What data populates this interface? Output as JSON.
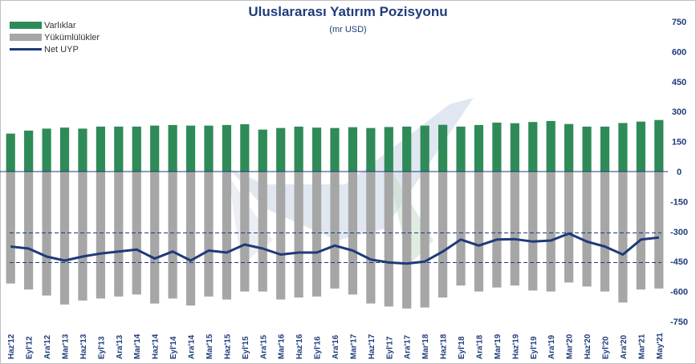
{
  "chart_data": {
    "type": "bar",
    "title": "Uluslararası  Yatırım Pozisyonu",
    "subtitle": "(mr USD)",
    "categories": [
      "Haz'12",
      "Eyl'12",
      "Ara'12",
      "Mar'13",
      "Haz'13",
      "Eyl'13",
      "Ara'13",
      "Mar'14",
      "Haz'14",
      "Eyl'14",
      "Ara'14",
      "Mar'15",
      "Haz'15",
      "Eyl'15",
      "Ara'15",
      "Mar'16",
      "Haz'16",
      "Eyl'16",
      "Ara'16",
      "Mar'17",
      "Haz'17",
      "Eyl'17",
      "Ara'17",
      "Mar'18",
      "Haz'18",
      "Eyl'18",
      "Ara'18",
      "Mar'19",
      "Haz'19",
      "Eyl'19",
      "Ara'19",
      "Mar'20",
      "Haz'20",
      "Eyl'20",
      "Ara'20",
      "Mar'21",
      "May'21"
    ],
    "series": [
      {
        "name": "Varlıklar",
        "kind": "bar",
        "color": "#2e8b57",
        "values": [
          190,
          205,
          215,
          220,
          215,
          225,
          225,
          225,
          230,
          233,
          230,
          230,
          233,
          237,
          210,
          218,
          225,
          220,
          218,
          222,
          218,
          223,
          225,
          230,
          234,
          225,
          233,
          245,
          242,
          248,
          253,
          238,
          225,
          225,
          243,
          250,
          258
        ]
      },
      {
        "name": "Yükümlülükler",
        "kind": "bar",
        "color": "#a6a6a6",
        "values": [
          -560,
          -590,
          -620,
          -665,
          -645,
          -635,
          -625,
          -615,
          -660,
          -635,
          -670,
          -625,
          -640,
          -600,
          -600,
          -640,
          -630,
          -625,
          -585,
          -615,
          -660,
          -675,
          -685,
          -680,
          -630,
          -570,
          -600,
          -580,
          -570,
          -595,
          -600,
          -555,
          -575,
          -600,
          -655,
          -590,
          -585
        ]
      },
      {
        "name": "Net UYP",
        "kind": "line",
        "color": "#1f3a7a",
        "values": [
          -375,
          -385,
          -425,
          -445,
          -425,
          -410,
          -400,
          -390,
          -435,
          -400,
          -445,
          -395,
          -405,
          -365,
          -385,
          -415,
          -405,
          -405,
          -370,
          -395,
          -440,
          -455,
          -460,
          -450,
          -400,
          -340,
          -370,
          -340,
          -338,
          -350,
          -345,
          -310,
          -350,
          -375,
          -415,
          -340,
          -330
        ]
      }
    ],
    "ylim": [
      -750,
      750
    ],
    "yticks": [
      -750,
      -600,
      -450,
      -300,
      -150,
      0,
      150,
      300,
      450,
      600,
      750
    ],
    "ytick_labels": [
      "-750",
      "-600",
      "-450",
      "-300",
      "-150",
      "0",
      "150",
      "300",
      "450",
      "600",
      "750"
    ],
    "reference_lines": [
      -307,
      -455
    ],
    "legend_position": "top-left",
    "grid": false
  }
}
